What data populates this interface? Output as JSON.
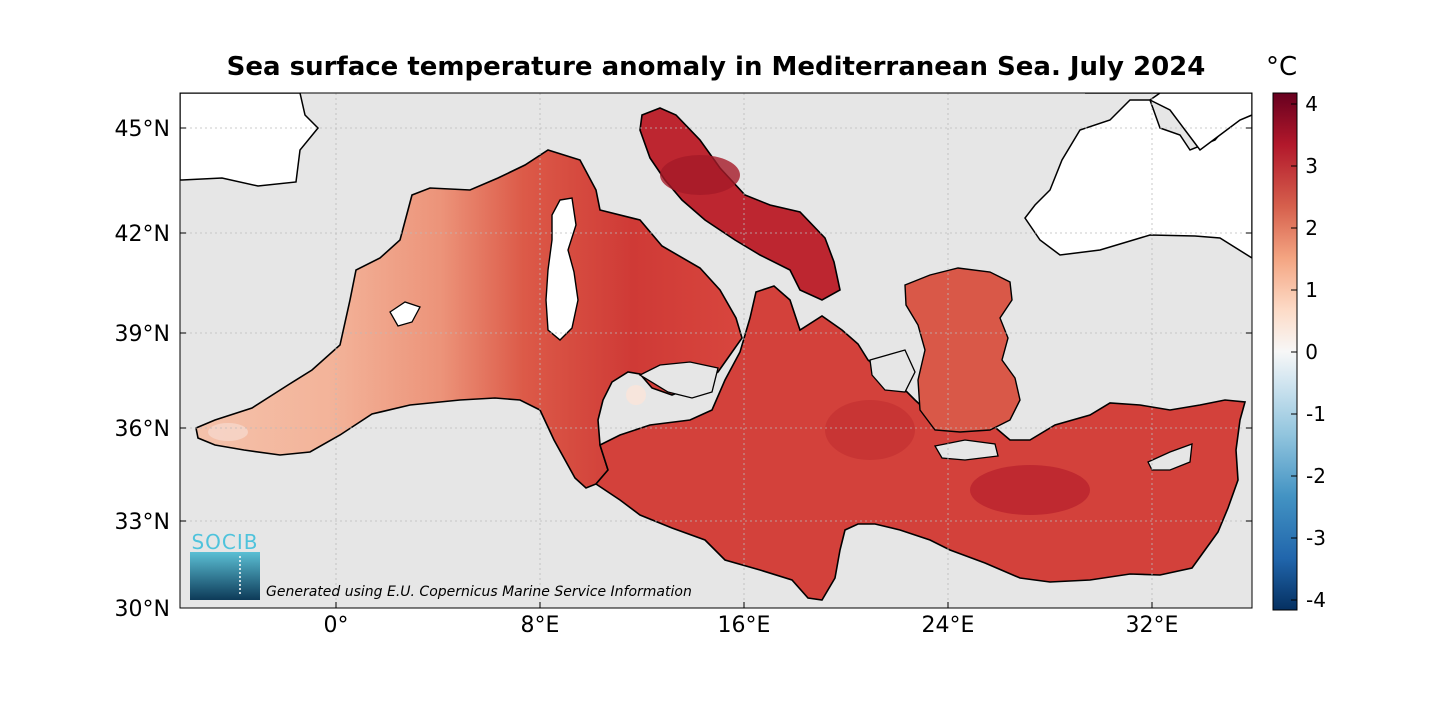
{
  "title": "Sea surface temperature anomaly in Mediterranean Sea. July 2024",
  "colorbar": {
    "unit": "°C",
    "range": [
      -4.2,
      4.2
    ],
    "ticks": [
      "4",
      "3",
      "2",
      "1",
      "0",
      "-1",
      "-2",
      "-3",
      "-4"
    ],
    "colors": [
      "#053061",
      "#2166ac",
      "#4393c3",
      "#92c5de",
      "#d1e5f0",
      "#f7f7f7",
      "#fddbc7",
      "#f4a582",
      "#d6604d",
      "#b2182b",
      "#67001f"
    ]
  },
  "axes": {
    "lon_range": [
      -6,
      36
    ],
    "lat_range": [
      30,
      46
    ],
    "lat_labels": [
      "45°N",
      "42°N",
      "39°N",
      "36°N",
      "33°N",
      "30°N"
    ],
    "lon_labels": [
      "0°",
      "8°E",
      "16°E",
      "24°E",
      "32°E"
    ],
    "grid": true
  },
  "colors": {
    "sea_background": "#e6e6e6",
    "land": "#ffffff",
    "west_med": "#f1a68a",
    "east_med": "#d9443d",
    "adriatic": "#b7202c"
  },
  "logo": {
    "text": "SOCIB"
  },
  "credit": "Generated using E.U. Copernicus Marine Service Information"
}
